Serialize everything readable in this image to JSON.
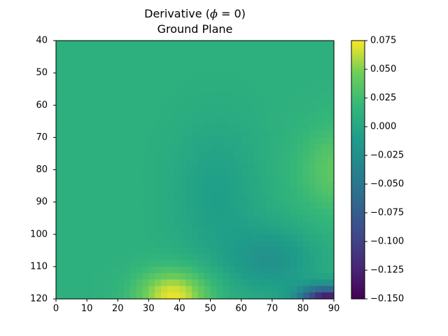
{
  "chart_data": {
    "type": "heatmap",
    "title": "Derivative (ϕ = 0)",
    "title_prefix": "Derivative (",
    "title_symbol": "ϕ",
    "title_suffix": " = 0)",
    "subtitle": "Ground Plane",
    "xlabel": "",
    "ylabel": "",
    "xlim": [
      0,
      90
    ],
    "ylim": [
      40,
      120
    ],
    "y_inverted": true,
    "x_ticks": [
      "0",
      "10",
      "20",
      "30",
      "40",
      "50",
      "60",
      "70",
      "80",
      "90"
    ],
    "y_ticks": [
      "40",
      "50",
      "60",
      "70",
      "80",
      "90",
      "100",
      "110",
      "120"
    ],
    "colorbar": {
      "colormap": "viridis",
      "range": [
        -0.15,
        0.075
      ],
      "ticks": [
        "0.075",
        "0.050",
        "0.025",
        "0.000",
        "−0.025",
        "−0.050",
        "−0.075",
        "−0.100",
        "−0.125",
        "−0.150"
      ],
      "tick_values": [
        0.075,
        0.05,
        0.025,
        0.0,
        -0.025,
        -0.05,
        -0.075,
        -0.1,
        -0.125,
        -0.15
      ]
    },
    "background_value": 0.01,
    "field_features": [
      {
        "kind": "peak",
        "x": 38,
        "y": 119,
        "amplitude": 0.062,
        "sigma_x": 12,
        "sigma_y": 8
      },
      {
        "kind": "peak",
        "x": 92,
        "y": 80,
        "amplitude": 0.03,
        "sigma_x": 14,
        "sigma_y": 14
      },
      {
        "kind": "trough",
        "x": 88,
        "y": 121,
        "amplitude": -0.165,
        "sigma_x": 9,
        "sigma_y": 4.5
      },
      {
        "kind": "trough",
        "x": 70,
        "y": 108,
        "amplitude": -0.03,
        "sigma_x": 14,
        "sigma_y": 10
      },
      {
        "kind": "trough",
        "x": 52,
        "y": 88,
        "amplitude": -0.018,
        "sigma_x": 14,
        "sigma_y": 22
      }
    ],
    "grid": false
  }
}
